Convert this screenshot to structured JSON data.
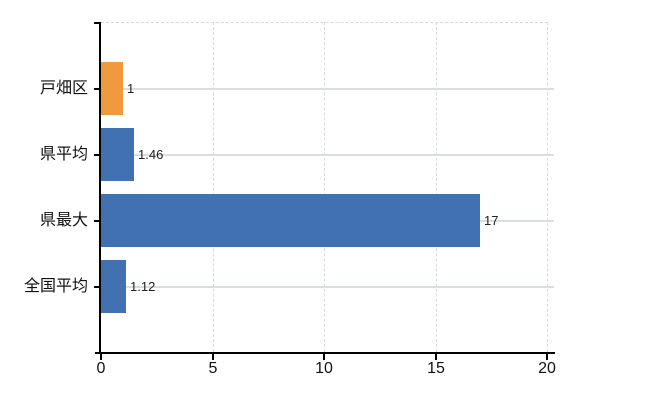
{
  "chart_data": {
    "type": "bar",
    "orientation": "horizontal",
    "categories": [
      "戸畑区",
      "県平均",
      "県最大",
      "全国平均"
    ],
    "values": [
      1,
      1.46,
      17,
      1.12
    ],
    "value_labels": [
      "1",
      "1.46",
      "17",
      "1.12"
    ],
    "bar_colors": [
      "#F0993F",
      "#4171B0",
      "#4171B0",
      "#4171B0"
    ],
    "xlim": [
      0,
      20
    ],
    "x_ticks": [
      0,
      5,
      10,
      15,
      20
    ],
    "x_tick_labels": [
      "0",
      "5",
      "10",
      "15",
      "20"
    ],
    "title": "",
    "xlabel": "",
    "ylabel": "",
    "grid": true,
    "legend": false
  },
  "colors": {
    "bar_orange": "#F0993F",
    "bar_blue": "#4171B0",
    "axis": "#000000",
    "grid_horizontal": "#d9dfde",
    "grid_vertical_dashed": "#d8dcd6",
    "text": "#111111",
    "background": "#ffffff"
  }
}
